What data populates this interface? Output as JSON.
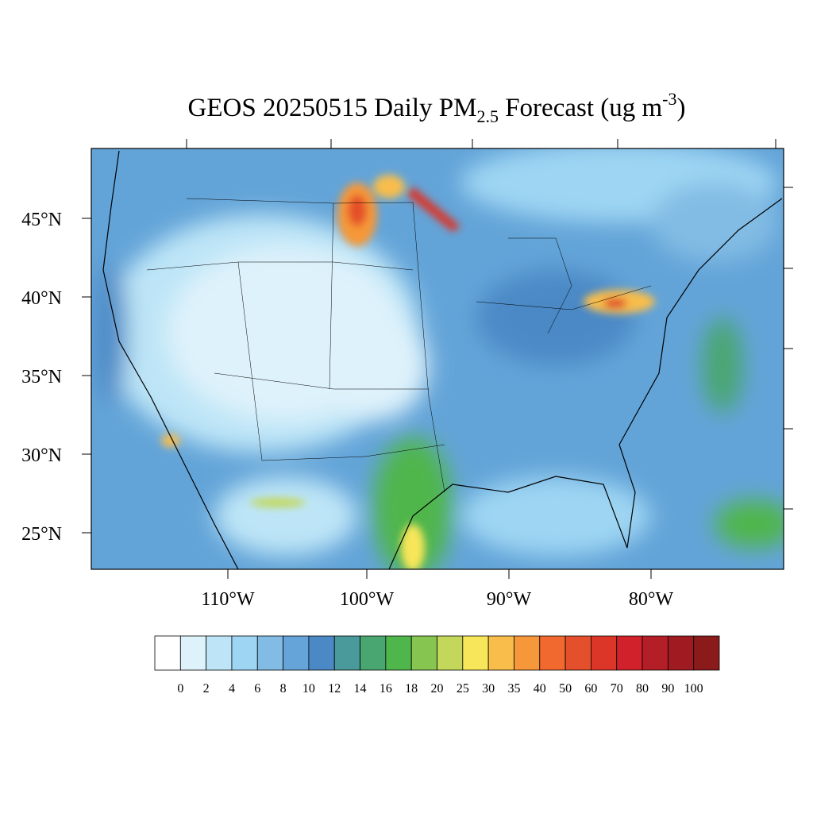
{
  "title": {
    "main": "GEOS 20250515 Daily PM",
    "sub": "2.5",
    "mid": " Forecast (ug m",
    "sup": "-3",
    "end": ")"
  },
  "map": {
    "lat_labels": [
      "45°N",
      "40°N",
      "35°N",
      "30°N",
      "25°N"
    ],
    "lon_labels": [
      "110°W",
      "100°W",
      "90°W",
      "80°W"
    ]
  },
  "colorbar": {
    "levels": [
      0,
      2,
      4,
      6,
      8,
      10,
      12,
      14,
      16,
      18,
      20,
      25,
      30,
      35,
      40,
      50,
      60,
      70,
      80,
      90,
      100
    ],
    "colors": [
      "#ffffff",
      "#def2fb",
      "#bde5f7",
      "#9ed5f3",
      "#82bce4",
      "#64a4d8",
      "#4b89c6",
      "#4a9a9b",
      "#49a670",
      "#4fb64c",
      "#86c54f",
      "#c3d85a",
      "#f8e65a",
      "#f8bd4b",
      "#f69839",
      "#f1692e",
      "#e4502c",
      "#dc3628",
      "#d1222b",
      "#b41e27",
      "#a01b21",
      "#8b1a1b"
    ]
  }
}
